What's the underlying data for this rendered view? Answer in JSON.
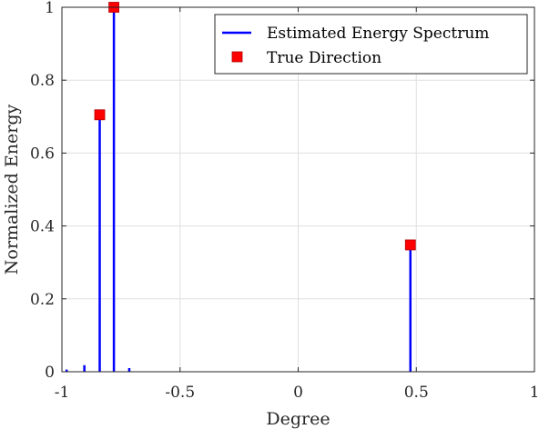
{
  "chart_data": {
    "type": "line",
    "xlabel": "Degree",
    "ylabel": "Normalized Energy",
    "xlim": [
      -1,
      1
    ],
    "ylim": [
      0,
      1
    ],
    "x_ticks": [
      -1,
      -0.5,
      0,
      0.5,
      1
    ],
    "x_tick_labels": [
      "-1",
      "-0.5",
      "0",
      "0.5",
      "1"
    ],
    "y_ticks": [
      0,
      0.2,
      0.4,
      0.6,
      0.8,
      1
    ],
    "y_tick_labels": [
      "0",
      "0.2",
      "0.4",
      "0.6",
      "0.8",
      "1"
    ],
    "grid": true,
    "legend_position": "top-right",
    "series": [
      {
        "name": "Estimated Energy Spectrum",
        "style": "stem-lines",
        "color": "#0000ff",
        "points": [
          {
            "x": -0.98,
            "y": 0.006
          },
          {
            "x": -0.905,
            "y": 0.018
          },
          {
            "x": -0.84,
            "y": 0.705
          },
          {
            "x": -0.78,
            "y": 1.0
          },
          {
            "x": -0.715,
            "y": 0.01
          },
          {
            "x": 0.475,
            "y": 0.348
          }
        ]
      },
      {
        "name": "True Direction",
        "style": "square-markers",
        "color": "#ff0000",
        "points": [
          {
            "x": -0.84,
            "y": 0.705
          },
          {
            "x": -0.78,
            "y": 1.0
          },
          {
            "x": 0.475,
            "y": 0.348
          }
        ]
      }
    ]
  }
}
